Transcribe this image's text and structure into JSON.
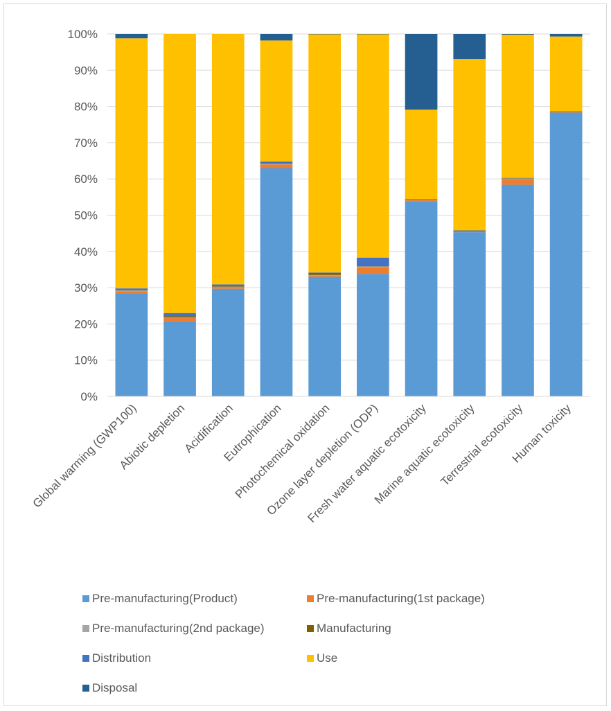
{
  "chart_data": {
    "type": "bar",
    "stacked": true,
    "percent_stacked": true,
    "title": "",
    "xlabel": "",
    "ylabel": "",
    "ylim": [
      0,
      100
    ],
    "y_ticks": [
      "0%",
      "10%",
      "20%",
      "30%",
      "40%",
      "50%",
      "60%",
      "70%",
      "80%",
      "90%",
      "100%"
    ],
    "grid": true,
    "legend_position": "bottom",
    "categories": [
      "Global warming (GWP100)",
      "Abiotic depletion",
      "Acidification",
      "Eutrophication",
      "Photochemical oxidation",
      "Ozone layer depletion (ODP)",
      "Fresh water aquatic ecotoxicity",
      "Marine aquatic ecotoxicity",
      "Terrestrial ecotoxicity",
      "Human toxicity"
    ],
    "series": [
      {
        "name": "Pre-manufacturing(Product)",
        "color": "#5b9bd5",
        "values": [
          28.3,
          20.8,
          29.7,
          63.0,
          33.0,
          33.8,
          53.8,
          45.3,
          58.4,
          78.3
        ]
      },
      {
        "name": "Pre-manufacturing(1st package)",
        "color": "#ed7d31",
        "values": [
          0.7,
          0.8,
          0.5,
          1.0,
          0.4,
          1.8,
          0.3,
          0.1,
          1.6,
          0.1
        ]
      },
      {
        "name": "Pre-manufacturing(2nd package)",
        "color": "#a5a5a5",
        "values": [
          0.2,
          0.2,
          0.1,
          0.1,
          0.1,
          0.2,
          0.1,
          0.1,
          0.1,
          0.1
        ]
      },
      {
        "name": "Manufacturing",
        "color": "#7f6000",
        "values": [
          0.1,
          0.3,
          0.2,
          0.1,
          0.6,
          0.1,
          0.1,
          0.2,
          0.1,
          0.1
        ]
      },
      {
        "name": "Distribution",
        "color": "#4472c4",
        "values": [
          0.5,
          0.9,
          0.4,
          0.6,
          0.1,
          2.4,
          0.1,
          0.1,
          0.1,
          0.1
        ]
      },
      {
        "name": "Use",
        "color": "#ffc000",
        "values": [
          69.0,
          77.0,
          69.1,
          33.4,
          65.7,
          61.6,
          24.7,
          47.3,
          39.5,
          20.6
        ]
      },
      {
        "name": "Disposal",
        "color": "#255e91",
        "values": [
          1.2,
          0.0,
          0.0,
          1.8,
          0.1,
          0.1,
          20.9,
          6.9,
          0.2,
          0.7
        ]
      }
    ]
  }
}
